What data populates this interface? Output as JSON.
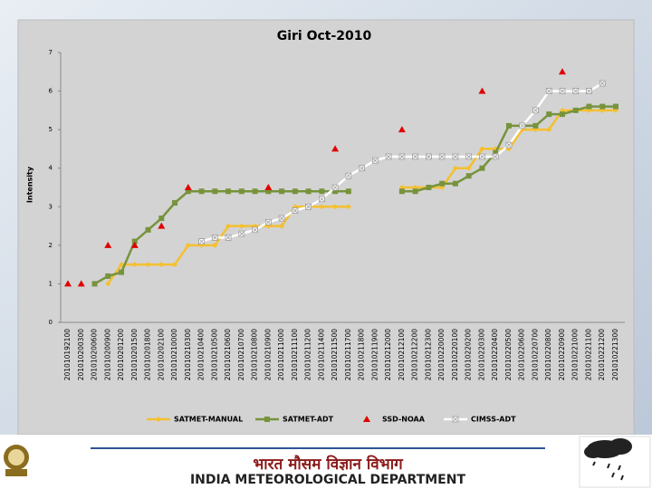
{
  "chart_data": {
    "type": "line",
    "title": "Giri  Oct-2010",
    "y_label": "Intensity",
    "categories": [
      "201010192100",
      "201010200300",
      "201010200600",
      "201010200900",
      "201010201200",
      "201010201500",
      "201010201800",
      "201010202100",
      "201010210000",
      "201010210300",
      "201010210400",
      "201010210500",
      "201010210600",
      "201010210700",
      "201010210800",
      "201010210900",
      "201010211000",
      "201010211100",
      "201010211200",
      "201010211400",
      "201010211500",
      "201010211700",
      "201010211800",
      "201010211900",
      "201010212000",
      "201010212100",
      "201010212200",
      "201010212300",
      "201010220000",
      "201010220100",
      "201010220200",
      "201010220300",
      "201010220400",
      "201010220500",
      "201010220600",
      "201010220700",
      "201010220800",
      "201010220900",
      "201010221000",
      "201010221100",
      "201010221200",
      "201010221300"
    ],
    "ylim": [
      0,
      7
    ],
    "yticks": [
      0,
      1,
      2,
      3,
      4,
      5,
      6,
      7
    ],
    "grid": false,
    "legend": "bottom",
    "series": [
      {
        "name": "SATMET-MANUAL",
        "color": "#f5c02f",
        "marker": "diamond",
        "line": true,
        "values": [
          null,
          null,
          null,
          1.0,
          1.5,
          1.5,
          1.5,
          1.5,
          1.5,
          2.0,
          2.0,
          2.0,
          2.5,
          2.5,
          2.5,
          2.5,
          2.5,
          3.0,
          3.0,
          3.0,
          3.0,
          3.0,
          null,
          null,
          null,
          3.5,
          3.5,
          3.5,
          3.5,
          4.0,
          4.0,
          4.5,
          4.5,
          4.5,
          5.0,
          5.0,
          5.0,
          5.5,
          5.5,
          5.5,
          5.5,
          5.5
        ]
      },
      {
        "name": "SATMET-ADT",
        "color": "#77933c",
        "marker": "square",
        "line": true,
        "values": [
          null,
          null,
          1.0,
          1.2,
          1.3,
          2.1,
          2.4,
          2.7,
          3.1,
          3.4,
          3.4,
          3.4,
          3.4,
          3.4,
          3.4,
          3.4,
          3.4,
          3.4,
          3.4,
          3.4,
          3.4,
          3.4,
          null,
          null,
          null,
          3.4,
          3.4,
          3.5,
          3.6,
          3.6,
          3.8,
          4.0,
          4.4,
          5.1,
          5.1,
          5.1,
          5.4,
          5.4,
          5.5,
          5.6,
          5.6,
          5.6
        ]
      },
      {
        "name": "SSD-NOAA",
        "color": "#e00000",
        "marker": "triangle",
        "line": false,
        "values": [
          1.0,
          1.0,
          null,
          2.0,
          null,
          2.0,
          null,
          2.5,
          null,
          3.5,
          null,
          null,
          null,
          null,
          null,
          3.5,
          null,
          null,
          null,
          null,
          4.5,
          null,
          null,
          null,
          null,
          5.0,
          null,
          null,
          null,
          null,
          null,
          6.0,
          null,
          null,
          null,
          null,
          null,
          6.5,
          null,
          null,
          null,
          null
        ]
      },
      {
        "name": "CIMSS-ADT",
        "color": "#ffffff",
        "marker": "xsquare",
        "line": true,
        "values": [
          null,
          null,
          null,
          null,
          null,
          null,
          null,
          null,
          null,
          null,
          2.1,
          2.2,
          2.2,
          2.3,
          2.4,
          2.6,
          2.7,
          2.9,
          3.0,
          3.2,
          3.5,
          3.8,
          4.0,
          4.2,
          4.3,
          4.3,
          4.3,
          4.3,
          4.3,
          4.3,
          4.3,
          4.3,
          4.3,
          4.6,
          5.1,
          5.5,
          6.0,
          6.0,
          6.0,
          6.0,
          6.2,
          null
        ]
      }
    ]
  },
  "footer": {
    "hindi": "भारत मौसम विज्ञान विभाग",
    "english": "INDIA METEOROLOGICAL DEPARTMENT"
  }
}
